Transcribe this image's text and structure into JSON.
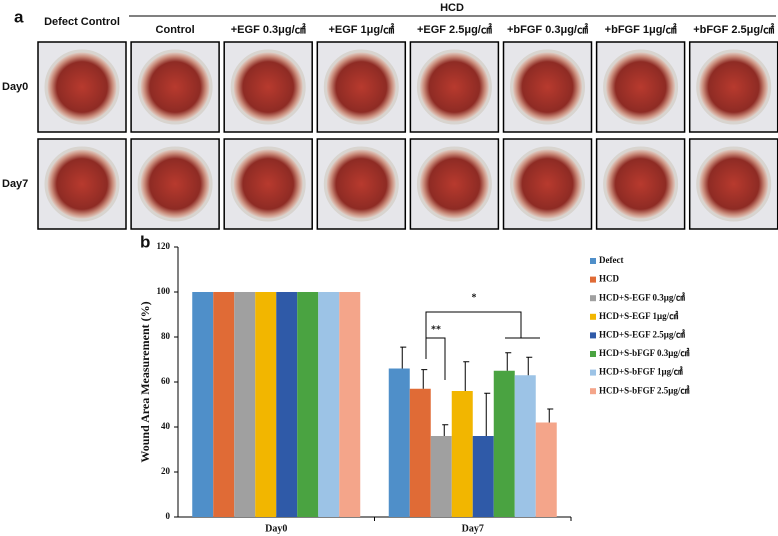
{
  "panel_a": {
    "label": "a",
    "group_label": "HCD",
    "columns": [
      "Defect Control",
      "Control",
      "+EGF 0.3μg/㎠",
      "+EGF 1μg/㎠",
      "+EGF 2.5μg/㎠",
      "+bFGF 0.3μg/㎠",
      "+bFGF 1μg/㎠",
      "+bFGF 2.5μg/㎠"
    ],
    "rows": [
      "Day0",
      "Day7"
    ]
  },
  "panel_b_label": "b",
  "chart_data": {
    "type": "bar",
    "ylabel": "Wound Area Measurement (%)",
    "categories": [
      "Day0",
      "Day7"
    ],
    "series": [
      {
        "name": "Defect",
        "color": "#4f8fc9",
        "values": [
          100,
          66
        ],
        "errors": [
          null,
          9.5
        ]
      },
      {
        "name": "HCD",
        "color": "#e06b36",
        "values": [
          100,
          57
        ],
        "errors": [
          null,
          8.5
        ]
      },
      {
        "name": "HCD+S-EGF 0.3μg/㎠",
        "color": "#a0a0a0",
        "values": [
          100,
          36
        ],
        "errors": [
          null,
          5
        ]
      },
      {
        "name": "HCD+S-EGF 1μg/㎠",
        "color": "#f2b600",
        "values": [
          100,
          56
        ],
        "errors": [
          null,
          13
        ]
      },
      {
        "name": "HCD+S-EGF 2.5μg/㎠",
        "color": "#2f5aa8",
        "values": [
          100,
          36
        ],
        "errors": [
          null,
          19
        ]
      },
      {
        "name": "HCD+S-bFGF 0.3μg/㎠",
        "color": "#4aa341",
        "values": [
          100,
          65
        ],
        "errors": [
          null,
          8
        ]
      },
      {
        "name": "HCD+S-bFGF 1μg/㎠",
        "color": "#9cc3e6",
        "values": [
          100,
          63
        ],
        "errors": [
          null,
          8
        ]
      },
      {
        "name": "HCD+S-bFGF 2.5μg/㎠",
        "color": "#f4a58a",
        "values": [
          100,
          42
        ],
        "errors": [
          null,
          6
        ]
      }
    ],
    "ylim": [
      0,
      120
    ],
    "yticks": [
      0,
      20,
      40,
      60,
      80,
      100,
      120
    ],
    "annotations": [
      "**",
      "*"
    ]
  }
}
